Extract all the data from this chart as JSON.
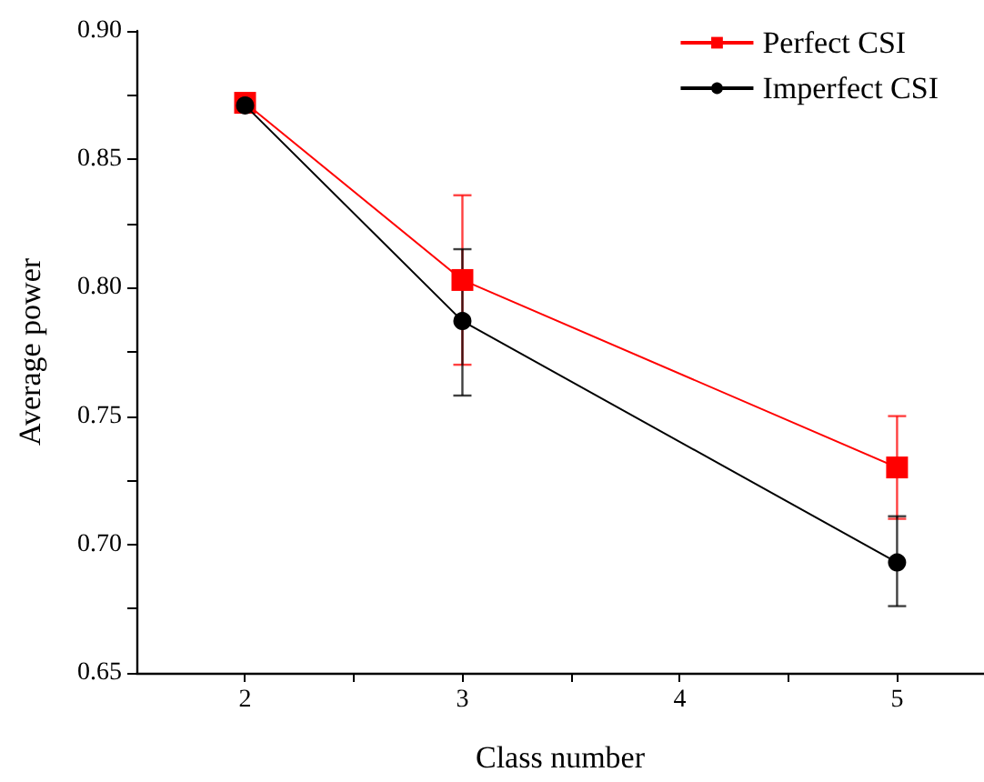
{
  "chart_data": {
    "type": "line",
    "xlabel": "Class number",
    "ylabel": "Average power",
    "x": [
      2,
      3,
      5
    ],
    "series": [
      {
        "name": "Perfect CSI",
        "color": "#ff0000",
        "marker": "square",
        "values": [
          0.872,
          0.803,
          0.73
        ],
        "errors": [
          null,
          [
            0.77,
            0.836
          ],
          [
            0.71,
            0.75
          ]
        ]
      },
      {
        "name": "Imperfect CSI",
        "color": "#000000",
        "marker": "circle",
        "values": [
          0.871,
          0.787,
          0.693
        ],
        "errors": [
          null,
          [
            0.758,
            0.815
          ],
          [
            0.676,
            0.711
          ]
        ]
      }
    ],
    "xlim": [
      1.5,
      5.4
    ],
    "xticks": [
      2,
      {
        "value": 2.5,
        "label": null
      },
      3,
      {
        "value": 3.5,
        "label": null
      },
      4,
      {
        "value": 4.5,
        "label": null
      },
      5
    ],
    "ylim": [
      0.65,
      0.9
    ],
    "yticks": [
      {
        "value": 0.65,
        "label": "0.65"
      },
      {
        "value": 0.675,
        "label": null
      },
      {
        "value": 0.7,
        "label": "0.70"
      },
      {
        "value": 0.725,
        "label": null
      },
      {
        "value": 0.75,
        "label": "0.75"
      },
      {
        "value": 0.775,
        "label": null
      },
      {
        "value": 0.8,
        "label": "0.80"
      },
      {
        "value": 0.825,
        "label": null
      },
      {
        "value": 0.85,
        "label": "0.85"
      },
      {
        "value": 0.875,
        "label": null
      },
      {
        "value": 0.9,
        "label": "0.90"
      }
    ],
    "grid": false,
    "legend": "top right",
    "line_style": "solid"
  }
}
